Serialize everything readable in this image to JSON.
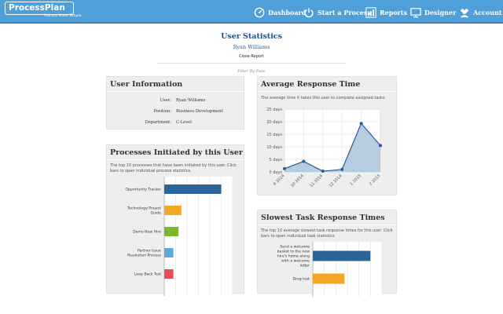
{
  "brand": {
    "name": "ProcessPlan",
    "tagline": "Process Made Simple."
  },
  "nav": [
    {
      "id": "dashboard",
      "label": "Dashboard",
      "icon": "dashboard-icon"
    },
    {
      "id": "start",
      "label": "Start a Process",
      "icon": "power-icon"
    },
    {
      "id": "reports",
      "label": "Reports",
      "icon": "bar-chart-icon"
    },
    {
      "id": "designer",
      "label": "Designer",
      "icon": "monitor-icon"
    },
    {
      "id": "account",
      "label": "Account",
      "icon": "users-icon"
    }
  ],
  "page": {
    "title": "User Statistics",
    "user_name": "Ryan Williams",
    "close_report": "Close Report",
    "filter": "Filter By Date"
  },
  "user_info": {
    "title": "User Information",
    "rows": [
      {
        "label": "User:",
        "value": "Ryan Williams"
      },
      {
        "label": "Position:",
        "value": "Business Development"
      },
      {
        "label": "Department:",
        "value": "C-Level"
      }
    ]
  },
  "processes": {
    "title": "Processes Initiated by this User",
    "description": "The top 10 processes that have been initiated by this user. Click bars to open individual process statistics."
  },
  "avg_response": {
    "title": "Average Response Time",
    "description": "The average time it takes this user to complete assigned tasks."
  },
  "slowest": {
    "title": "Slowest Task Response Times",
    "description": "The top 10 average slowest task response times for this user. Click bars to open individual task statistics."
  },
  "colors": {
    "header": "#4f9fd8",
    "title": "#1f4f84",
    "bar_blue": "#2b6496",
    "bar_orange": "#f5a623",
    "bar_green": "#7cb82f",
    "bar_light": "#5fa8dc",
    "bar_red": "#e84b5a",
    "area": "#a9c3dc"
  },
  "chart_data": [
    {
      "type": "area",
      "x": [
        "9 2014",
        "10 2014",
        "11 2014",
        "12 2014",
        "1 2015",
        "2 2015"
      ],
      "y": [
        1.3,
        4.2,
        0.3,
        1.0,
        19.3,
        10.5
      ],
      "yticks": [
        "0 days",
        "5 days",
        "10 days",
        "15 days",
        "20 days",
        "25 days"
      ],
      "ylim": [
        0,
        25
      ],
      "grid": true
    },
    {
      "type": "bar",
      "orientation": "horizontal",
      "categories": [
        "Opportunity Tracker",
        "Technology Project Guide",
        "Demo New Hire",
        "Partner Issue Resolution Process",
        "Loop Back Test"
      ],
      "values": [
        10,
        3,
        2.5,
        1.6,
        1.6
      ],
      "colors": [
        "#2b6496",
        "#f5a623",
        "#7cb82f",
        "#5fa8dc",
        "#e84b5a"
      ]
    },
    {
      "type": "bar",
      "orientation": "horizontal",
      "categories": [
        "Send a welcome basket to the new hire's home along with a welcome letter",
        "Drug test"
      ],
      "values": [
        10,
        5.5
      ],
      "colors": [
        "#2b6496",
        "#f5a623"
      ]
    }
  ]
}
